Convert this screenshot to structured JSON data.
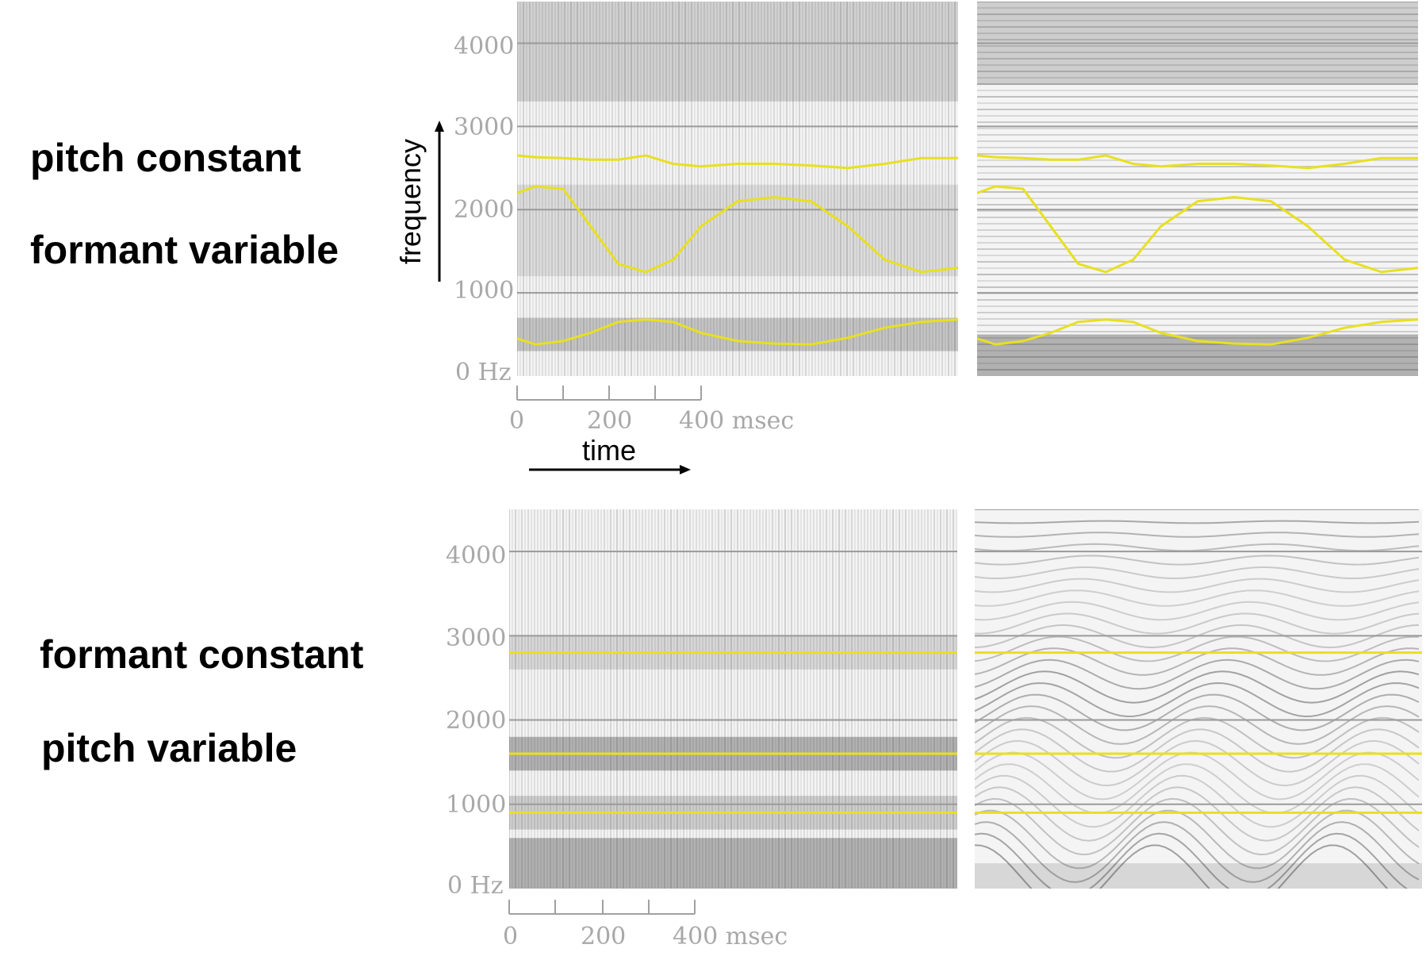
{
  "rows": [
    {
      "label_line1": "pitch constant",
      "label_line2": "formant variable",
      "y_ticks": [
        "4000",
        "3000",
        "2000",
        "1000",
        "0 Hz"
      ],
      "x_ticks": [
        "0",
        "200",
        "400 msec"
      ]
    },
    {
      "label_line1": "formant constant",
      "label_line2": "pitch variable",
      "y_ticks": [
        "4000",
        "3000",
        "2000",
        "1000",
        "0 Hz"
      ],
      "x_ticks": [
        "0",
        "200",
        "400 msec"
      ]
    }
  ],
  "axes": {
    "frequency_label": "frequency",
    "time_label": "time"
  },
  "colors": {
    "formant_track": "#e8e020",
    "gridline": "#9a9a9a",
    "tick_text": "#a8a8a8"
  },
  "chart_data": [
    {
      "type": "line",
      "description_ref": "pitch constant / formant variable",
      "x_unit": "msec",
      "y_unit": "Hz",
      "ylim": [
        0,
        4500
      ],
      "xlim": [
        0,
        960
      ],
      "series": [
        {
          "x": [
            0,
            40,
            100,
            160,
            220,
            280,
            340,
            400,
            480,
            560,
            640,
            720,
            800,
            880,
            960
          ],
          "values": [
            450,
            380,
            420,
            520,
            650,
            680,
            650,
            520,
            420,
            390,
            380,
            460,
            580,
            650,
            680
          ]
        },
        {
          "x": [
            0,
            40,
            100,
            160,
            220,
            280,
            340,
            400,
            480,
            560,
            640,
            720,
            800,
            880,
            960
          ],
          "values": [
            2200,
            2280,
            2250,
            1800,
            1350,
            1250,
            1400,
            1800,
            2100,
            2150,
            2100,
            1800,
            1400,
            1250,
            1300
          ]
        },
        {
          "x": [
            0,
            40,
            100,
            160,
            220,
            280,
            340,
            400,
            480,
            560,
            640,
            720,
            800,
            880,
            960
          ],
          "values": [
            2650,
            2630,
            2620,
            2600,
            2600,
            2650,
            2550,
            2520,
            2550,
            2550,
            2530,
            2500,
            2550,
            2620,
            2620
          ]
        }
      ]
    },
    {
      "type": "line",
      "description_ref": "formant constant / pitch variable",
      "x_unit": "msec",
      "y_unit": "Hz",
      "ylim": [
        0,
        4500
      ],
      "xlim": [
        0,
        960
      ],
      "series": [
        {
          "x": [
            0,
            960
          ],
          "values": [
            900,
            900
          ]
        },
        {
          "x": [
            0,
            960
          ],
          "values": [
            1600,
            1600
          ]
        },
        {
          "x": [
            0,
            960
          ],
          "values": [
            2800,
            2800
          ]
        }
      ]
    }
  ]
}
